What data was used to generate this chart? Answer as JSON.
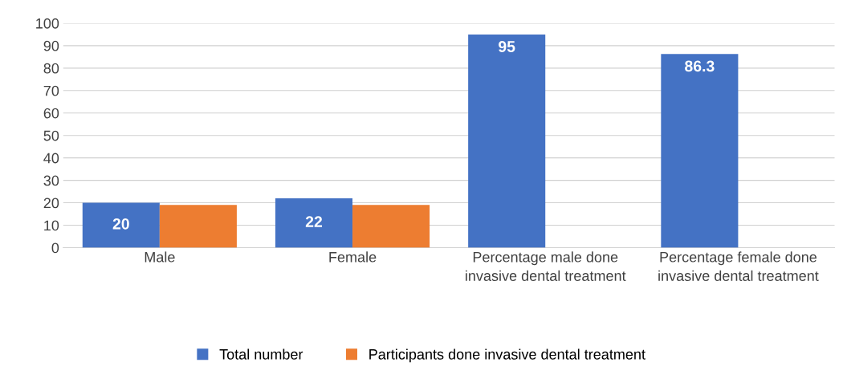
{
  "chart_data": {
    "type": "bar",
    "categories": [
      "Male",
      "Female",
      "Percentage male done invasive dental treatment",
      "Percentage female done invasive dental treatment"
    ],
    "series": [
      {
        "name": "Total number",
        "color": "#4472c4",
        "values": [
          20,
          22,
          95,
          86.3
        ],
        "value_labels": [
          "20",
          "22",
          "95",
          "86.3"
        ]
      },
      {
        "name": "Participants done invasive dental treatment",
        "color": "#ed7d31",
        "values": [
          19,
          19,
          null,
          null
        ]
      }
    ],
    "ylim": [
      0,
      100
    ],
    "yticks": [
      0,
      10,
      20,
      30,
      40,
      50,
      60,
      70,
      80,
      90,
      100
    ],
    "grid": "y",
    "legend": "bottom"
  }
}
